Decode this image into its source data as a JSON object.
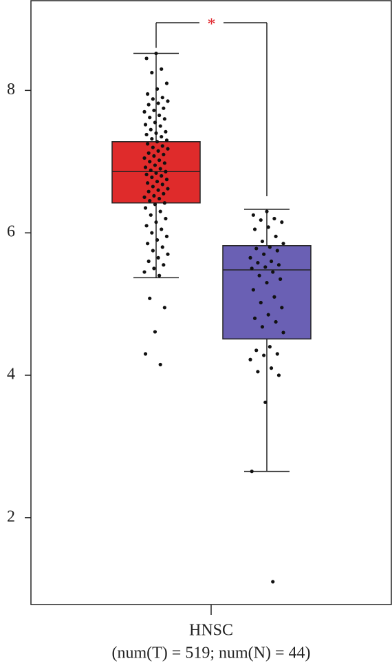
{
  "chart_data": {
    "type": "box",
    "categories": [
      "HNSC"
    ],
    "subtitle": "(num(T) = 519; num(N) = 44)",
    "annotation": "*",
    "annotation_color": "#e0242a",
    "ylim": [
      0.78,
      9.27
    ],
    "yticks": [
      2,
      4,
      6,
      8
    ],
    "boxes": [
      {
        "color": "#df2b2b",
        "whisker_low": 5.37,
        "q1": 6.42,
        "median": 6.86,
        "q3": 7.28,
        "whisker_high": 8.52,
        "points": [
          8.52,
          8.45,
          8.3,
          8.25,
          8.1,
          8.02,
          7.95,
          7.9,
          7.88,
          7.85,
          7.82,
          7.8,
          7.75,
          7.72,
          7.7,
          7.65,
          7.62,
          7.6,
          7.55,
          7.52,
          7.5,
          7.45,
          7.42,
          7.4,
          7.38,
          7.35,
          7.32,
          7.3,
          7.28,
          7.25,
          7.22,
          7.2,
          7.18,
          7.15,
          7.12,
          7.1,
          7.08,
          7.05,
          7.02,
          7.0,
          6.98,
          6.95,
          6.92,
          6.9,
          6.88,
          6.86,
          6.84,
          6.82,
          6.8,
          6.78,
          6.75,
          6.72,
          6.7,
          6.68,
          6.65,
          6.62,
          6.6,
          6.58,
          6.55,
          6.52,
          6.5,
          6.48,
          6.45,
          6.42,
          6.4,
          6.35,
          6.3,
          6.25,
          6.2,
          6.15,
          6.1,
          6.05,
          6.0,
          5.95,
          5.9,
          5.85,
          5.8,
          5.75,
          5.7,
          5.65,
          5.6,
          5.55,
          5.5,
          5.45,
          5.4,
          5.08,
          4.95,
          4.61,
          4.3,
          4.15
        ]
      },
      {
        "color": "#6a60b4",
        "whisker_low": 2.65,
        "q1": 4.51,
        "median": 5.48,
        "q3": 5.82,
        "whisker_high": 6.33,
        "points": [
          6.3,
          6.25,
          6.2,
          6.18,
          6.15,
          6.08,
          6.05,
          5.95,
          5.88,
          5.85,
          5.8,
          5.78,
          5.75,
          5.7,
          5.65,
          5.6,
          5.58,
          5.55,
          5.52,
          5.5,
          5.45,
          5.4,
          5.35,
          5.3,
          5.2,
          5.1,
          5.02,
          4.95,
          4.85,
          4.8,
          4.75,
          4.68,
          4.6,
          4.4,
          4.35,
          4.3,
          4.28,
          4.22,
          4.1,
          4.05,
          4.0,
          3.62,
          2.65,
          1.1
        ]
      }
    ]
  }
}
